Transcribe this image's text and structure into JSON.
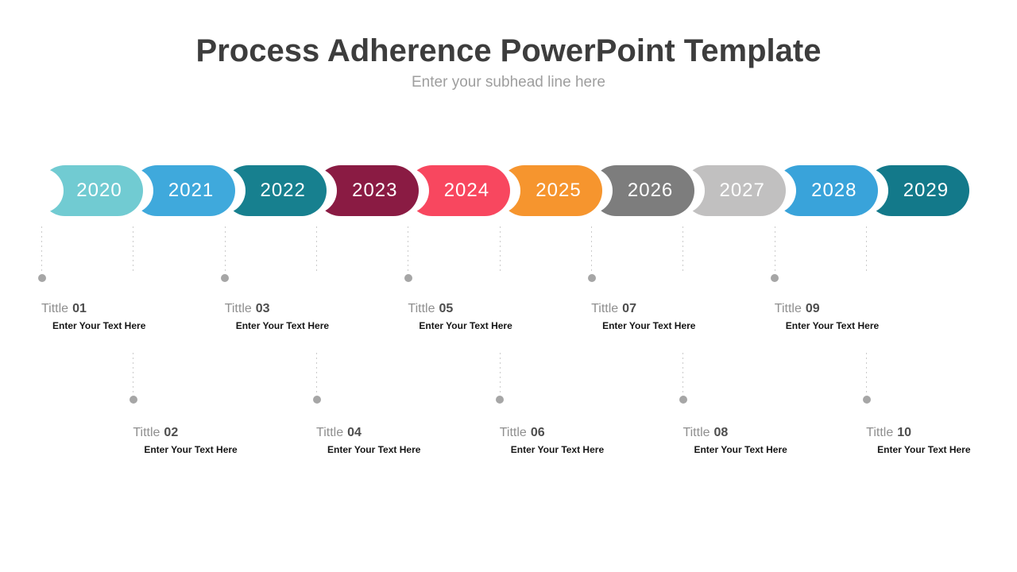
{
  "header": {
    "title": "Process Adherence PowerPoint Template",
    "subtitle": "Enter your subhead line here",
    "title_color": "#3d3d3d",
    "subtitle_color": "#9e9e9e"
  },
  "timeline": {
    "dot_color": "#a6a6a6",
    "dash_color": "#cbcbcb",
    "year_text_color": "#ffffff",
    "items": [
      {
        "year": "2020",
        "color": "#71CBD2",
        "label": "Tittle",
        "number": "01",
        "body": "Enter Your Text Here",
        "row": "top"
      },
      {
        "year": "2021",
        "color": "#3FA9DC",
        "label": "Tittle",
        "number": "02",
        "body": "Enter Your Text Here",
        "row": "bottom"
      },
      {
        "year": "2022",
        "color": "#17808F",
        "label": "Tittle",
        "number": "03",
        "body": "Enter Your Text Here",
        "row": "top"
      },
      {
        "year": "2023",
        "color": "#8A1B43",
        "label": "Tittle",
        "number": "04",
        "body": "Enter Your Text Here",
        "row": "bottom"
      },
      {
        "year": "2024",
        "color": "#F8475F",
        "label": "Tittle",
        "number": "05",
        "body": "Enter Your Text Here",
        "row": "top"
      },
      {
        "year": "2025",
        "color": "#F6952E",
        "label": "Tittle",
        "number": "06",
        "body": "Enter Your Text Here",
        "row": "bottom"
      },
      {
        "year": "2026",
        "color": "#7D7D7D",
        "label": "Tittle",
        "number": "07",
        "body": "Enter Your Text Here",
        "row": "top"
      },
      {
        "year": "2027",
        "color": "#C1C0C0",
        "label": "Tittle",
        "number": "08",
        "body": "Enter Your Text Here",
        "row": "bottom"
      },
      {
        "year": "2028",
        "color": "#39A3DA",
        "label": "Tittle",
        "number": "09",
        "body": "Enter Your Text Here",
        "row": "top"
      },
      {
        "year": "2029",
        "color": "#13798A",
        "label": "Tittle",
        "number": "10",
        "body": "Enter Your Text Here",
        "row": "bottom"
      }
    ]
  }
}
